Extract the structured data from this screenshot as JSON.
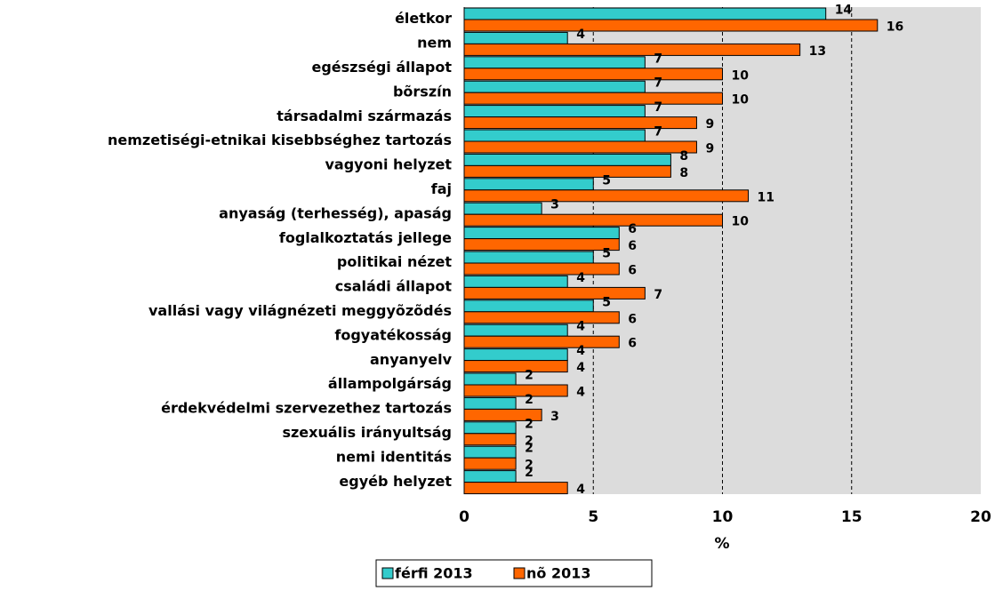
{
  "chart_data": {
    "type": "bar",
    "orientation": "horizontal",
    "categories": [
      "életkor",
      "nem",
      "egészségi állapot",
      "bõrszín",
      "társadalmi származás",
      "nemzetiségi-etnikai kisebbséghez tartozás",
      "vagyoni helyzet",
      "faj",
      "anyaság (terhesség), apaság",
      "foglalkoztatás jellege",
      "politikai nézet",
      "családi állapot",
      "vallási vagy világnézeti meggyõzõdés",
      "fogyatékosság",
      "anyanyelv",
      "állampolgárság",
      "érdekvédelmi szervezethez tartozás",
      "szexuális irányultság",
      "nemi identitás",
      "egyéb helyzet"
    ],
    "series": [
      {
        "name": "férfi 2013",
        "color": "#33cccc",
        "values": [
          14,
          4,
          7,
          7,
          7,
          7,
          8,
          5,
          3,
          6,
          5,
          4,
          5,
          4,
          4,
          2,
          2,
          2,
          2,
          2
        ]
      },
      {
        "name": "nõ 2013",
        "color": "#ff6600",
        "values": [
          16,
          13,
          10,
          10,
          9,
          9,
          8,
          11,
          10,
          6,
          6,
          7,
          6,
          6,
          4,
          4,
          3,
          2,
          2,
          4
        ]
      }
    ],
    "xlabel": "%",
    "xlim": [
      0,
      20
    ],
    "xticks": [
      0,
      5,
      10,
      15,
      20
    ],
    "grid": true,
    "legend": "bottom",
    "plot_background": "#dcdcdc"
  }
}
